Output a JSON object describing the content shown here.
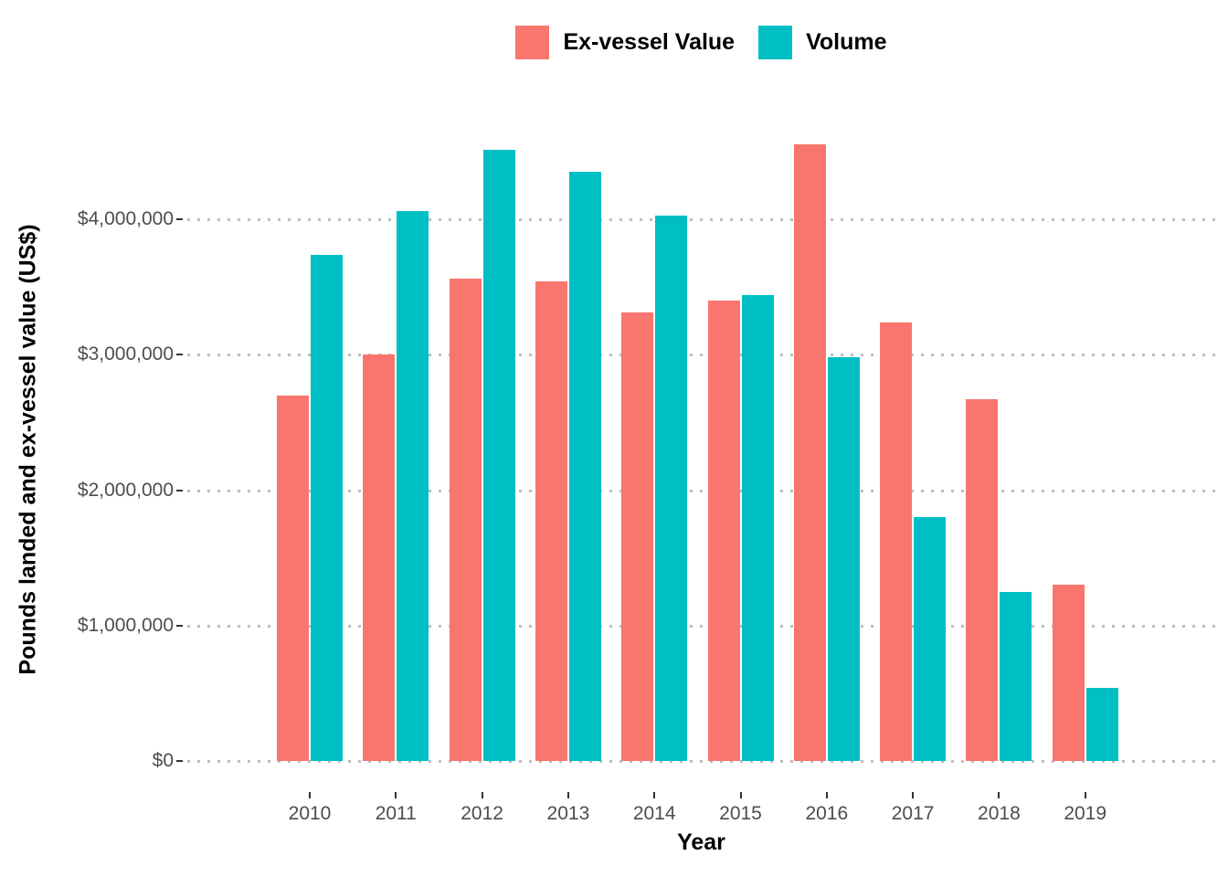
{
  "chart_data": {
    "type": "bar",
    "title": "",
    "xlabel": "Year",
    "ylabel": "Pounds landed and ex-vessel value (US$)",
    "categories": [
      "2010",
      "2011",
      "2012",
      "2013",
      "2014",
      "2015",
      "2016",
      "2017",
      "2018",
      "2019"
    ],
    "series": [
      {
        "name": "Ex-vessel Value",
        "color": "#F8766D",
        "values": [
          2700000,
          3000000,
          3560000,
          3540000,
          3310000,
          3400000,
          4550000,
          3240000,
          2670000,
          1300000
        ]
      },
      {
        "name": "Volume",
        "color": "#00BFC4",
        "values": [
          3740000,
          4060000,
          4510000,
          4350000,
          4030000,
          3440000,
          2980000,
          1800000,
          1250000,
          540000
        ]
      }
    ],
    "y_ticks": [
      {
        "value": 0,
        "label": "$0"
      },
      {
        "value": 1000000,
        "label": "$1,000,000"
      },
      {
        "value": 2000000,
        "label": "$2,000,000"
      },
      {
        "value": 3000000,
        "label": "$3,000,000"
      },
      {
        "value": 4000000,
        "label": "$4,000,000"
      }
    ],
    "ylim": [
      0,
      4780000
    ],
    "grid": "horizontal dotted lines at y ticks",
    "legend_position": "top-center"
  },
  "colors": {
    "ex_vessel": "#F8766D",
    "volume": "#00BFC4",
    "gridline": "#BEBEBE",
    "tick_mark": "#333333",
    "axis_text": "#4D4D4D",
    "axis_title": "#000000",
    "background": "#FFFFFF"
  }
}
